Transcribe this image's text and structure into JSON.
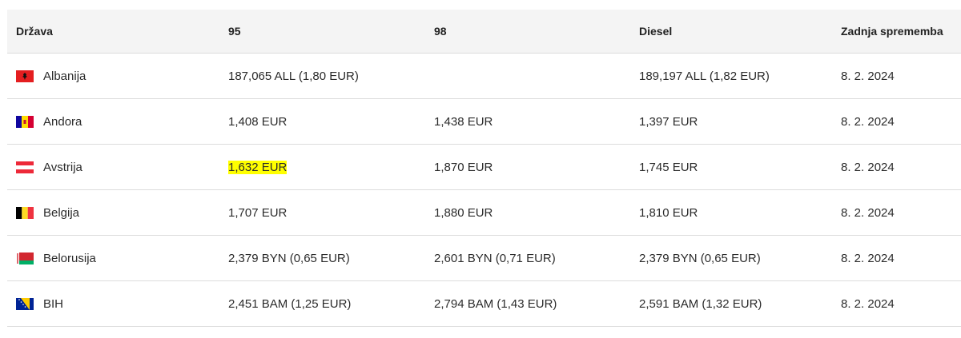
{
  "headers": {
    "country": "Država",
    "p95": "95",
    "p98": "98",
    "diesel": "Diesel",
    "last_change": "Zadnja sprememba"
  },
  "rows": [
    {
      "country": "Albanija",
      "flag": "albania-flag-icon",
      "p95": "187,065 ALL (1,80 EUR)",
      "p98": "",
      "diesel": "189,197 ALL (1,82 EUR)",
      "date": "8. 2. 2024"
    },
    {
      "country": "Andora",
      "flag": "andorra-flag-icon",
      "p95": "1,408 EUR",
      "p98": "1,438 EUR",
      "diesel": "1,397 EUR",
      "date": "8. 2. 2024"
    },
    {
      "country": "Avstrija",
      "flag": "austria-flag-icon",
      "p95": "1,632 EUR",
      "p98": "1,870 EUR",
      "diesel": "1,745 EUR",
      "date": "8. 2. 2024",
      "p95_highlighted": true
    },
    {
      "country": "Belgija",
      "flag": "belgium-flag-icon",
      "p95": "1,707 EUR",
      "p98": "1,880 EUR",
      "diesel": "1,810 EUR",
      "date": "8. 2. 2024"
    },
    {
      "country": "Belorusija",
      "flag": "belarus-flag-icon",
      "p95": "2,379 BYN (0,65 EUR)",
      "p98": "2,601 BYN (0,71 EUR)",
      "diesel": "2,379 BYN (0,65 EUR)",
      "date": "8. 2. 2024"
    },
    {
      "country": "BIH",
      "flag": "bosnia-flag-icon",
      "p95": "2,451 BAM (1,25 EUR)",
      "p98": "2,794 BAM (1,43 EUR)",
      "diesel": "2,591 BAM (1,32 EUR)",
      "date": "8. 2. 2024"
    }
  ],
  "colors": {
    "highlight": "#ffff00",
    "header_bg": "#f4f4f4"
  }
}
